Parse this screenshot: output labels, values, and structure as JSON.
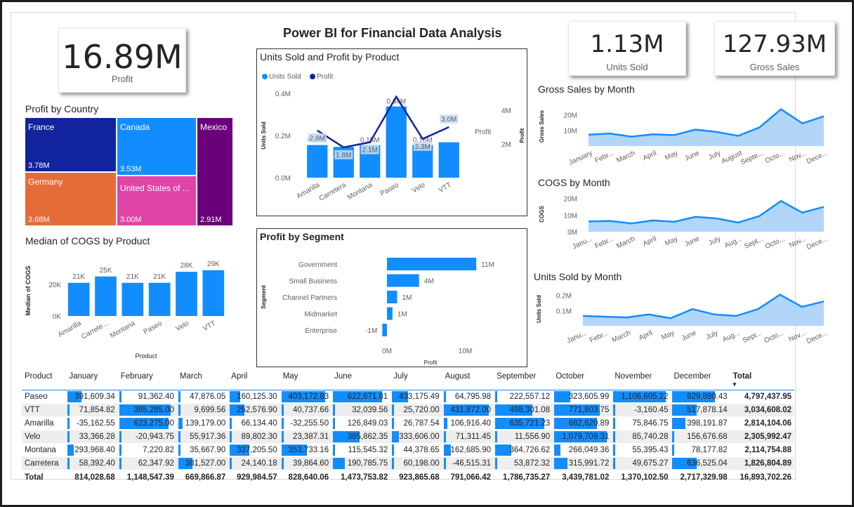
{
  "dashboard_title": "Power BI for Financial Data Analysis",
  "colors": {
    "accent": "#118dff",
    "dark_blue": "#12239e",
    "orange": "#e66c37",
    "magenta": "#d64550",
    "pink": "#e044a7",
    "purple": "#6b007b",
    "area_fill": "#a9d1f7"
  },
  "kpis": {
    "profit": {
      "value": "16.89M",
      "label": "Profit"
    },
    "units_sold": {
      "value": "1.13M",
      "label": "Units Sold"
    },
    "gross_sales": {
      "value": "127.93M",
      "label": "Gross Sales"
    }
  },
  "treemap": {
    "title": "Profit by Country",
    "items": [
      {
        "name": "France",
        "value_label": "3.78M",
        "color": "#12239e"
      },
      {
        "name": "Canada",
        "value_label": "3.53M",
        "color": "#118dff"
      },
      {
        "name": "Mexico",
        "value_label": "2.91M",
        "color": "#6b007b"
      },
      {
        "name": "Germany",
        "value_label": "3.68M",
        "color": "#e66c37"
      },
      {
        "name": "United States of ...",
        "value_label": "3.00M",
        "color": "#e044a7"
      }
    ]
  },
  "chart_data": [
    {
      "id": "median_cogs",
      "type": "bar",
      "title": "Median of COGS by Product",
      "xlabel": "Product",
      "ylabel": "Median of COGS",
      "categories": [
        "Amarilla",
        "Carrete...",
        "Montana",
        "Paseo",
        "Velo",
        "VTT"
      ],
      "values": [
        21000,
        25000,
        21000,
        21000,
        28000,
        29000
      ],
      "data_labels": [
        "21K",
        "25K",
        "21K",
        "21K",
        "28K",
        "29K"
      ],
      "yticks": [
        "0K",
        "20K"
      ],
      "ylim": [
        0,
        32000
      ]
    },
    {
      "id": "units_profit",
      "type": "bar",
      "title": "Units Sold and Profit by Product",
      "legend": [
        "Units Sold",
        "Profit"
      ],
      "categories": [
        "Amarilla",
        "Carretera",
        "Montana",
        "Paseo",
        "Velo",
        "VTT"
      ],
      "ylabel": "Units Sold",
      "y2label": "Profit",
      "series": [
        {
          "name": "Units Sold",
          "values": [
            155000,
            146000,
            155000,
            338000,
            155000,
            168000
          ],
          "labels": [
            "0.16M",
            "",
            "0.15M",
            "0.34M",
            "0.16M",
            ""
          ]
        },
        {
          "name": "Profit",
          "values": [
            2.8,
            1.8,
            2.1,
            4.8,
            2.3,
            3.0
          ],
          "labels": [
            "2.8M",
            "1.8M",
            "2.1M",
            "",
            "2.3M",
            "3.0M"
          ]
        }
      ],
      "yticks": [
        "0.0M",
        "0.2M",
        "0.4M"
      ],
      "y2ticks": [
        "2M",
        "4M"
      ],
      "ylim": [
        0,
        400000
      ],
      "y2lim": [
        0,
        5
      ]
    },
    {
      "id": "segment",
      "type": "bar",
      "orientation": "horizontal",
      "title": "Profit by Segment",
      "xlabel": "Profit",
      "ylabel": "Segment",
      "categories": [
        "Government",
        "Small Business",
        "Channel Partners",
        "Midmarket",
        "Enterprise"
      ],
      "values": [
        11.4,
        4.1,
        1.3,
        0.7,
        -0.6
      ],
      "data_labels": [
        "11M",
        "4M",
        "1M",
        "1M",
        "-1M"
      ],
      "xticks": [
        "0M",
        "10M"
      ],
      "xlim": [
        -1,
        13
      ]
    },
    {
      "id": "gross_sales_month",
      "type": "area",
      "title": "Gross Sales by Month",
      "ylabel": "Gross Sales",
      "categories": [
        "January",
        "Febr...",
        "March",
        "April",
        "May",
        "June",
        "July",
        "August",
        "Septe...",
        "Octo...",
        "Nov...",
        "Dece..."
      ],
      "values": [
        7.3,
        8.0,
        6.0,
        7.5,
        7.0,
        10.5,
        9.0,
        6.5,
        12.0,
        23.5,
        14.5,
        19.0
      ],
      "yticks": [
        "10M",
        "20M"
      ],
      "ylim": [
        0,
        26
      ]
    },
    {
      "id": "cogs_month",
      "type": "area",
      "title": "COGS by Month",
      "ylabel": "COGS",
      "categories": [
        "Janu...",
        "Febr...",
        "March",
        "April",
        "May",
        "June",
        "July",
        "Aug...",
        "Sept...",
        "Octo...",
        "Nov...",
        "Dece..."
      ],
      "values": [
        6.2,
        6.5,
        5.0,
        6.8,
        6.0,
        9.0,
        8.0,
        5.5,
        9.5,
        18.5,
        11.5,
        15.0
      ],
      "yticks": [
        "0M",
        "10M",
        "20M"
      ],
      "ylim": [
        0,
        22
      ]
    },
    {
      "id": "units_month",
      "type": "area",
      "title": "Units Sold by Month",
      "ylabel": "Units Sold",
      "categories": [
        "Janu...",
        "Febr...",
        "March",
        "April",
        "May",
        "June",
        "July",
        "Aug...",
        "Sept...",
        "Octo...",
        "Nov...",
        "Dece..."
      ],
      "values": [
        0.065,
        0.06,
        0.055,
        0.075,
        0.05,
        0.11,
        0.075,
        0.065,
        0.11,
        0.205,
        0.125,
        0.16
      ],
      "yticks": [
        "0.1M",
        "0.2M"
      ],
      "ylim": [
        0,
        0.24
      ]
    }
  ],
  "matrix": {
    "columns": [
      "Product",
      "January",
      "February",
      "March",
      "April",
      "May",
      "June",
      "July",
      "August",
      "September",
      "October",
      "November",
      "December",
      "Total"
    ],
    "rows": [
      {
        "name": "Paseo",
        "values": [
          "391,609.34",
          "91,362.40",
          "47,876.05",
          "160,125.30",
          "403,172.83",
          "622,671.81",
          "433,175.49",
          "64,795.98",
          "222,557.12",
          "323,605.99",
          "1,106,605.22",
          "929,880.43"
        ],
        "bars": [
          0.3,
          0,
          0,
          0.22,
          0.95,
          0.92,
          0.34,
          0,
          0,
          0.3,
          0.98,
          0.8
        ],
        "total": "4,797,437.95"
      },
      {
        "name": "VTT",
        "values": [
          "71,854.82",
          "385,285.00",
          "9,699.56",
          "252,576.90",
          "40,737.66",
          "32,039.56",
          "25,720.00",
          "431,872.00",
          "498,301.08",
          "771,803.75",
          "-3,160.45",
          "517,878.14"
        ],
        "bars": [
          0,
          0.97,
          0,
          0.32,
          0,
          0,
          0,
          0.98,
          0.7,
          0.85,
          0,
          0.45
        ],
        "total": "3,034,608.02"
      },
      {
        "name": "Amarilla",
        "values": [
          "-35,162.55",
          "623,275.00",
          "139,179.00",
          "66,134.40",
          "-32,255.50",
          "126,849.03",
          "26,787.54",
          "106,916.40",
          "635,721.23",
          "682,620.89",
          "75,846.75",
          "398,191.87"
        ],
        "bars": [
          0,
          0.93,
          0.1,
          0,
          0,
          0,
          0,
          0.08,
          0.93,
          0.8,
          0,
          0.25
        ],
        "total": "2,814,104.06"
      },
      {
        "name": "Velo",
        "values": [
          "33,366.28",
          "-20,943.75",
          "55,917.36",
          "89,802.30",
          "23,387.31",
          "385,862.35",
          "333,606.00",
          "71,311.45",
          "11,556.90",
          "1,079,709.31",
          "85,740.28",
          "156,676.68"
        ],
        "bars": [
          0,
          0,
          0,
          0,
          0,
          0.5,
          0.15,
          0,
          0,
          0.99,
          0,
          0
        ],
        "total": "2,305,992.47"
      },
      {
        "name": "Montana",
        "values": [
          "293,968.40",
          "7,220.82",
          "35,667.90",
          "337,205.50",
          "353,733.16",
          "115,545.32",
          "44,378.65",
          "162,685.90",
          "364,726.62",
          "266,049.36",
          "55,395.43",
          "78,177.82"
        ],
        "bars": [
          0.13,
          0,
          0,
          0.42,
          0.55,
          0,
          0,
          0.15,
          0.3,
          0.12,
          0,
          0
        ],
        "total": "2,114,754.88"
      },
      {
        "name": "Carretera",
        "values": [
          "58,392.40",
          "62,347.92",
          "381,527.00",
          "24,140.18",
          "39,864.60",
          "190,785.75",
          "60,198.00",
          "-46,515.31",
          "53,872.32",
          "315,991.72",
          "49,675.27",
          "636,525.04"
        ],
        "bars": [
          0,
          0,
          0.3,
          0,
          0,
          0.22,
          0,
          0,
          0,
          0.25,
          0,
          0.45
        ],
        "total": "1,826,804.89"
      }
    ],
    "total_row": {
      "name": "Total",
      "values": [
        "814,028.68",
        "1,148,547.39",
        "669,866.87",
        "929,984.57",
        "828,640.06",
        "1,473,753.82",
        "923,865.68",
        "791,066.42",
        "1,786,735.27",
        "3,439,781.02",
        "1,370,102.50",
        "2,717,329.98"
      ],
      "total": "16,893,702.26"
    }
  }
}
